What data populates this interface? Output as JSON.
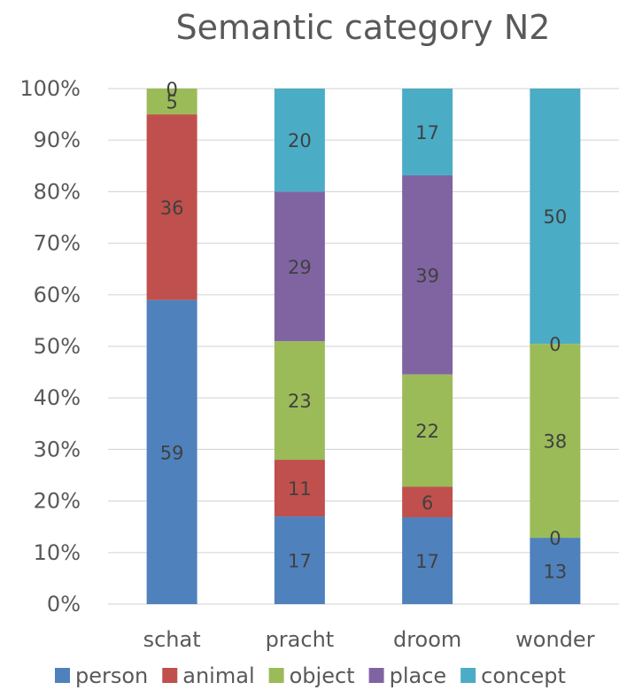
{
  "chart_data": {
    "type": "bar",
    "stacked": true,
    "percent": true,
    "title": "Semantic category N2",
    "xlabel": "",
    "ylabel": "",
    "ylim": [
      0,
      100
    ],
    "yticks": [
      "0%",
      "10%",
      "20%",
      "30%",
      "40%",
      "50%",
      "60%",
      "70%",
      "80%",
      "90%",
      "100%"
    ],
    "categories": [
      "schat",
      "pracht",
      "droom",
      "wonder"
    ],
    "series": [
      {
        "name": "person",
        "color": "#4f81bd",
        "values": [
          59,
          17,
          17,
          13
        ]
      },
      {
        "name": "animal",
        "color": "#c0504d",
        "values": [
          36,
          11,
          6,
          0
        ]
      },
      {
        "name": "object",
        "color": "#9bbb59",
        "values": [
          5,
          23,
          22,
          38
        ]
      },
      {
        "name": "place",
        "color": "#8064a2",
        "values": [
          0,
          29,
          39,
          0
        ]
      },
      {
        "name": "concept",
        "color": "#4bacc6",
        "values": [
          0,
          20,
          17,
          50
        ]
      }
    ],
    "data_labels": [
      [
        "59",
        "17",
        "17",
        "13"
      ],
      [
        "36",
        "11",
        "6",
        "0"
      ],
      [
        "5",
        "23",
        "22",
        "38"
      ],
      [
        "0",
        "29",
        "39",
        "0"
      ],
      [
        "",
        "20",
        "17",
        "50"
      ]
    ],
    "grid": true,
    "legend": "bottom"
  }
}
